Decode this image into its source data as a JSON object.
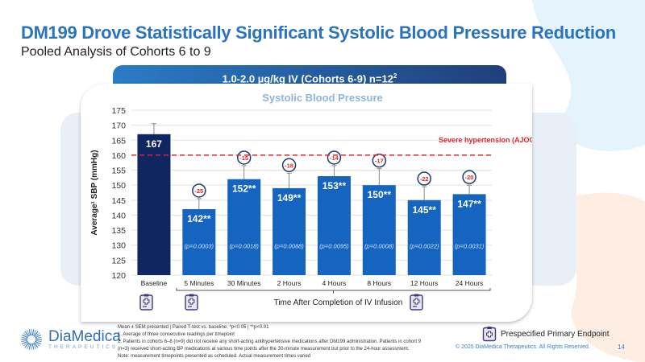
{
  "slide": {
    "title": "DM199 Drove Statistically Significant Systolic Blood Pressure Reduction",
    "subtitle": "Pooled Analysis of Cohorts 6 to 9",
    "header_pill": "1.0-2.0 µg/kg IV (Cohorts 6-9) n=12",
    "header_pill_sup": "2",
    "page_number": "14",
    "copyright": "© 2025 DiaMedica Therapeutics. All Rights Reserved."
  },
  "logo": {
    "name": "DiaMedica",
    "sub": "THERAPEUTICS",
    "icon": "sunburst-icon"
  },
  "legend": {
    "label": "Prespecified Primary Endpoint",
    "icon": "clipboard-medical-icon"
  },
  "footnotes": [
    "Mean ± SEM presented | Paired T-test vs. baseline: *p<0.05 | **p<0.01",
    "1. Average of three consecutive readings per timepoint",
    "2. Patients in cohorts 6–8 (n=9) did not receive any short-acting antihypertensive medications after DM199 administration. Patients in cohort 9",
    "(n=3) received short-acting BP medications at various time points after the 30-minute measurement but prior to the 24-hour assessment.",
    "Note: measurement timepoints presented as scheduled. Actual measurement times varied"
  ],
  "colors": {
    "baseline_bar": "#0f2660",
    "bar": "#1565c0",
    "threshold": "#e0262b",
    "title": "#2a73c0",
    "delta_text": "#e0262b",
    "delta_circle": "#1f3a6e"
  },
  "chart_data": {
    "type": "bar",
    "title": "Systolic Blood Pressure",
    "xlabel": "Time After Completion of IV Infusion",
    "ylabel": "Average¹ SBP (mmHg)",
    "ylim": [
      120,
      175
    ],
    "yticks": [
      120,
      125,
      130,
      135,
      140,
      145,
      150,
      155,
      160,
      165,
      170,
      175
    ],
    "grid": true,
    "categories": [
      "Baseline",
      "5 Minutes",
      "30 Minutes",
      "2 Hours",
      "4 Hours",
      "8 Hours",
      "12 Hours",
      "24 Hours"
    ],
    "values": [
      167,
      142,
      152,
      149,
      153,
      150,
      145,
      147
    ],
    "value_labels": [
      "167",
      "142**",
      "152**",
      "149**",
      "153**",
      "150**",
      "145**",
      "147**"
    ],
    "error_upper": [
      170.5,
      145.5,
      156.5,
      154,
      156.5,
      155.5,
      149.5,
      150
    ],
    "change_from_baseline": [
      null,
      "-25",
      "-15",
      "-18",
      "-14",
      "-17",
      "-22",
      "-20"
    ],
    "p_values": [
      null,
      "(p=0.0003)",
      "(p=0.0018)",
      "(p=0.0088)",
      "(p=0.0095)",
      "(p=0.0008)",
      "(p=0.0022)",
      "(p=0.0031)"
    ],
    "primary_endpoint": [
      false,
      true,
      true,
      false,
      false,
      false,
      false,
      true
    ],
    "reference_line": {
      "value": 160,
      "label": "Severe hypertension (AJOG)",
      "style": "dashed"
    }
  }
}
